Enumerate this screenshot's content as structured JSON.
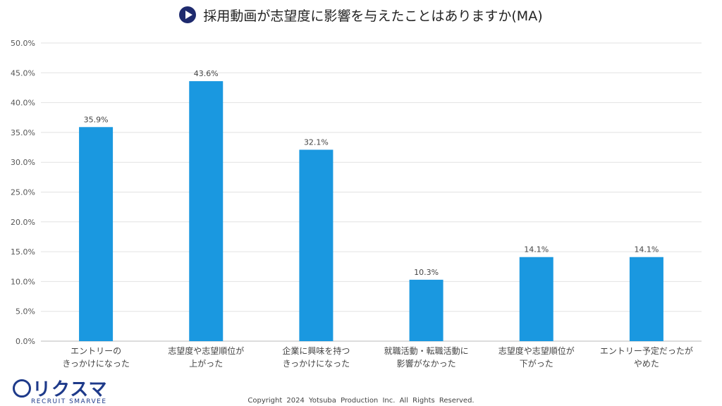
{
  "title": "採用動画が志望度に影響を与えたことはありますか(MA)",
  "chart_data": {
    "type": "bar",
    "title": "採用動画が志望度に影響を与えたことはありますか(MA)",
    "categories": [
      [
        "エントリーの",
        "きっかけになった"
      ],
      [
        "志望度や志望順位が",
        "上がった"
      ],
      [
        "企業に興味を持つ",
        "きっかけになった"
      ],
      [
        "就職活動・転職活動に",
        "影響がなかった"
      ],
      [
        "志望度や志望順位が",
        "下がった"
      ],
      [
        "エントリー予定だったが",
        "やめた"
      ]
    ],
    "values": [
      35.9,
      43.6,
      32.1,
      10.3,
      14.1,
      14.1
    ],
    "data_labels": [
      "35.9%",
      "43.6%",
      "32.1%",
      "10.3%",
      "14.1%",
      "14.1%"
    ],
    "yticks": [
      "0.0%",
      "5.0%",
      "10.0%",
      "15.0%",
      "20.0%",
      "25.0%",
      "30.0%",
      "35.0%",
      "40.0%",
      "45.0%",
      "50.0%"
    ],
    "ylim": [
      0,
      50
    ],
    "grid": true,
    "bar_color": "#1a98e0"
  },
  "logo": {
    "brand": "リクスマ",
    "sub": "RECRUIT SMARVEE"
  },
  "copyright": "Copyright 2024 Yotsuba Production Inc. All Rights Reserved."
}
